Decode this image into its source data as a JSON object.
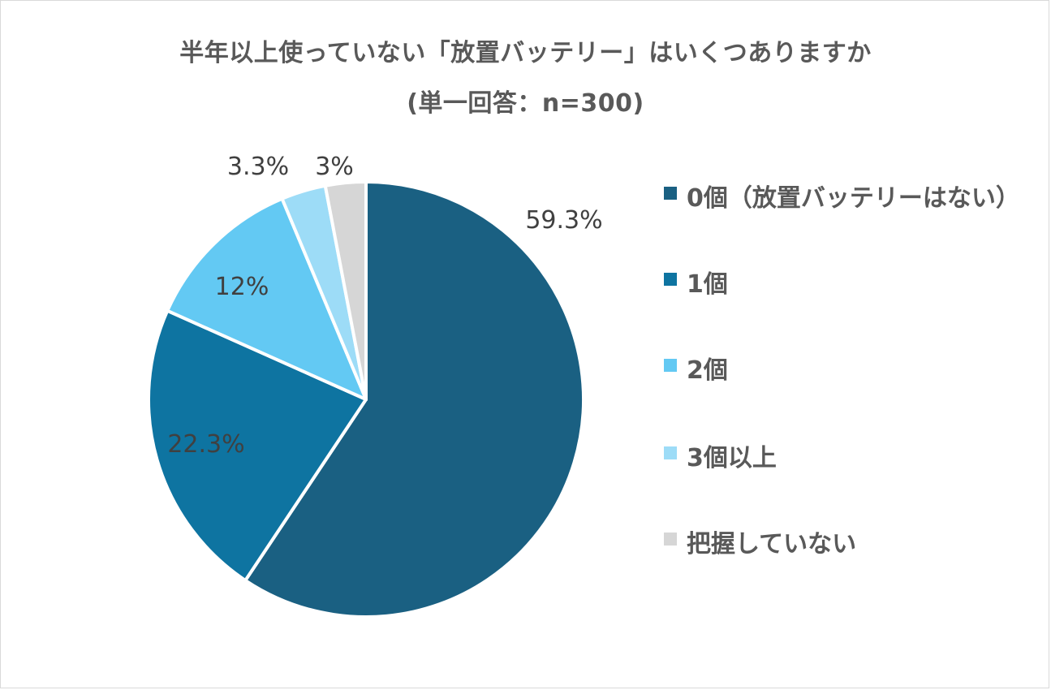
{
  "chart_data": {
    "type": "pie",
    "title": "半年以上使っていない「放置バッテリー」はいくつありますか",
    "subtitle": "(単一回答：n=300)",
    "categories": [
      "0個（放置バッテリーはない）",
      "1個",
      "2個",
      "3個以上",
      "把握していない"
    ],
    "values": [
      59.3,
      22.3,
      12,
      3.3,
      3
    ],
    "data_labels": [
      "59.3%",
      "22.3%",
      "12%",
      "3.3%",
      "3%"
    ],
    "colors": [
      "#1a6082",
      "#0e74a1",
      "#63c9f3",
      "#9ddcf7",
      "#d6d6d6"
    ],
    "legend_position": "right",
    "start_angle": "top",
    "direction": "clockwise"
  }
}
